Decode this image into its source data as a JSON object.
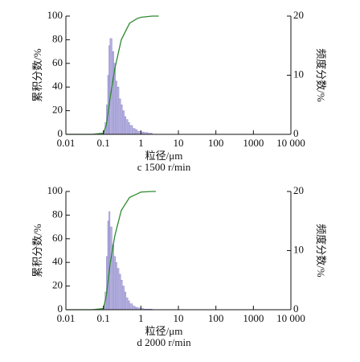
{
  "chart_data": [
    {
      "type": "histogram",
      "subtitle": "c 1500 r/min",
      "x_label": "粒径/μm",
      "y_label": "累积分数/%",
      "y2_label": "频度分数/%",
      "xscale": "log",
      "xlim": [
        0.01,
        10000
      ],
      "xticks": [
        0.01,
        0.1,
        1,
        10,
        100,
        1000,
        {
          "value": 10000,
          "label": "10 000"
        }
      ],
      "ylim": [
        0,
        100
      ],
      "yticks": [
        0,
        20,
        40,
        60,
        80,
        100
      ],
      "y2lim": [
        0,
        20
      ],
      "y2ticks": [
        0,
        10,
        20
      ],
      "bins": [
        0.1,
        0.11,
        0.12,
        0.13,
        0.14,
        0.15,
        0.17,
        0.19,
        0.21,
        0.23,
        0.26,
        0.29,
        0.32,
        0.36,
        0.4,
        0.45,
        0.5,
        0.6,
        0.7,
        0.8,
        1.0,
        1.2,
        1.5,
        2.0
      ],
      "values": [
        0.5,
        2,
        5,
        10,
        15,
        16.2,
        14,
        12,
        9,
        8,
        6,
        5,
        4,
        3,
        2.5,
        2,
        1.5,
        1,
        0.8,
        0.5,
        0.4,
        0.3,
        0.2
      ],
      "axis": "y2",
      "color": "#b7b3e0",
      "cumulative": {
        "color": "#2f8a2f",
        "x": [
          0.01,
          0.05,
          0.1,
          0.12,
          0.15,
          0.2,
          0.3,
          0.5,
          0.8,
          1,
          2,
          3
        ],
        "values": [
          0,
          0,
          1,
          8,
          30,
          55,
          80,
          94,
          98,
          99,
          100,
          100
        ]
      }
    },
    {
      "type": "histogram",
      "subtitle": "d 2000 r/min",
      "x_label": "粒径/μm",
      "y_label": "累积分数/%",
      "y2_label": "频度分数/%",
      "xscale": "log",
      "xlim": [
        0.01,
        10000
      ],
      "xticks": [
        0.01,
        0.1,
        1,
        10,
        100,
        1000,
        {
          "value": 10000,
          "label": "10 000"
        }
      ],
      "ylim": [
        0,
        100
      ],
      "yticks": [
        0,
        20,
        40,
        60,
        80,
        100
      ],
      "y2lim": [
        0,
        20
      ],
      "y2ticks": [
        0,
        10,
        20
      ],
      "bins": [
        0.1,
        0.11,
        0.12,
        0.13,
        0.14,
        0.15,
        0.17,
        0.19,
        0.21,
        0.23,
        0.26,
        0.29,
        0.32,
        0.36,
        0.4,
        0.45,
        0.5,
        0.6,
        0.7,
        0.8,
        1.0,
        1.2,
        1.5,
        2.0
      ],
      "values": [
        0.5,
        3,
        9,
        15,
        16.6,
        14,
        11,
        9,
        8,
        7,
        6,
        5,
        4,
        3,
        2,
        1.5,
        1,
        0.6,
        0.4,
        0.3,
        0.2,
        0.1,
        0.1
      ],
      "axis": "y2",
      "color": "#b7b3e0",
      "cumulative": {
        "color": "#2f8a2f",
        "x": [
          0.01,
          0.05,
          0.1,
          0.12,
          0.15,
          0.2,
          0.3,
          0.5,
          0.8,
          1,
          2,
          2.5
        ],
        "values": [
          0,
          0,
          1,
          12,
          38,
          62,
          84,
          95,
          98,
          99.5,
          100,
          100
        ]
      }
    }
  ]
}
